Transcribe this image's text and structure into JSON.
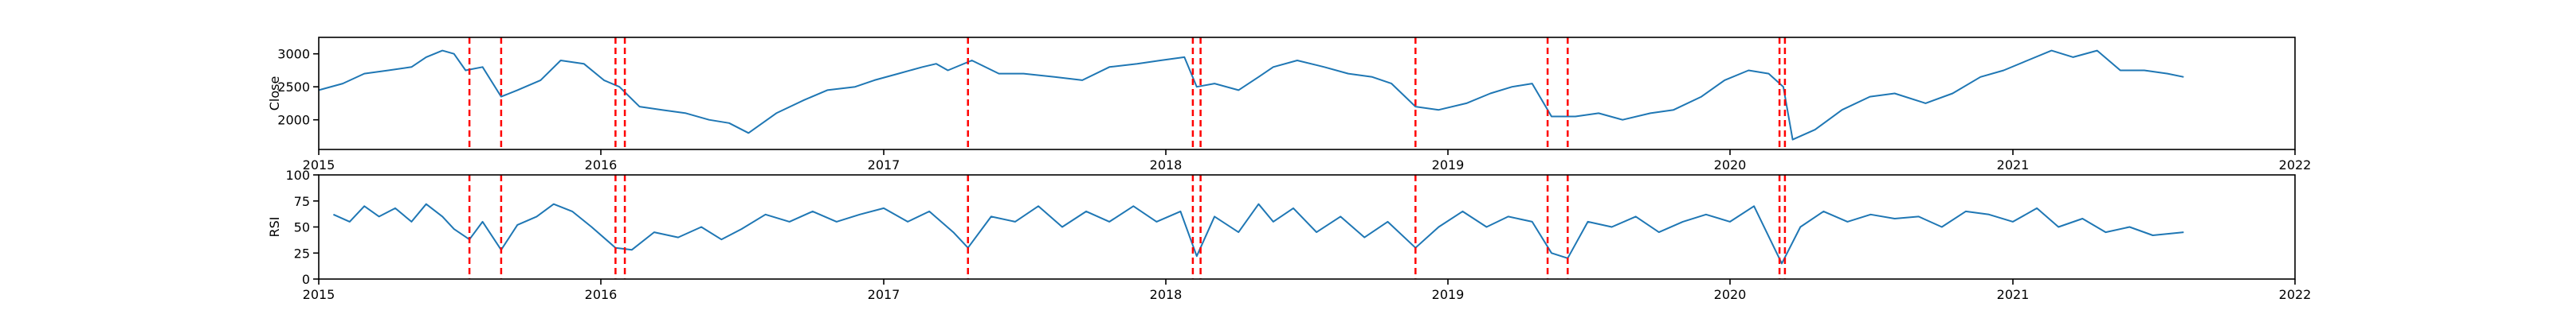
{
  "figure": {
    "colors": {
      "line": "#1f77b4",
      "event": "#ff0000",
      "axes": "#000000"
    }
  },
  "chart_data": [
    {
      "type": "line",
      "ylabel": "Close",
      "xlim": [
        "2015-01-01",
        "2022-01-01"
      ],
      "ylim": [
        1550,
        3250
      ],
      "yticks": [
        2000,
        2500,
        3000
      ],
      "xticks": [
        "2015",
        "2016",
        "2017",
        "2018",
        "2019",
        "2020",
        "2021",
        "2022"
      ],
      "grid": false,
      "series": [
        {
          "x": [
            "2015-01-01",
            "2015-02-01",
            "2015-03-01",
            "2015-04-01",
            "2015-05-01",
            "2015-05-20",
            "2015-06-10",
            "2015-06-25",
            "2015-07-10",
            "2015-08-01",
            "2015-08-25",
            "2015-09-15",
            "2015-10-15",
            "2015-11-10",
            "2015-12-10",
            "2016-01-05",
            "2016-01-25",
            "2016-02-20",
            "2016-03-20",
            "2016-04-20",
            "2016-05-20",
            "2016-06-15",
            "2016-07-10",
            "2016-08-15",
            "2016-09-20",
            "2016-10-20",
            "2016-11-25",
            "2016-12-20",
            "2017-01-20",
            "2017-02-20",
            "2017-03-10",
            "2017-03-25",
            "2017-04-25",
            "2017-05-30",
            "2017-07-01",
            "2017-08-10",
            "2017-09-15",
            "2017-10-20",
            "2017-11-25",
            "2017-12-25",
            "2018-01-25",
            "2018-02-10",
            "2018-03-05",
            "2018-04-05",
            "2018-05-01",
            "2018-05-20",
            "2018-06-20",
            "2018-07-25",
            "2018-08-25",
            "2018-09-25",
            "2018-10-20",
            "2018-11-20",
            "2018-12-20",
            "2019-01-25",
            "2019-02-25",
            "2019-03-25",
            "2019-04-20",
            "2019-05-15",
            "2019-06-15",
            "2019-07-15",
            "2019-08-15",
            "2019-09-20",
            "2019-10-20",
            "2019-11-25",
            "2019-12-25",
            "2020-01-25",
            "2020-02-20",
            "2020-03-10",
            "2020-03-22",
            "2020-04-20",
            "2020-05-25",
            "2020-06-30",
            "2020-08-01",
            "2020-09-10",
            "2020-10-15",
            "2020-11-20",
            "2020-12-20",
            "2021-01-20",
            "2021-02-20",
            "2021-03-20",
            "2021-04-20",
            "2021-05-20",
            "2021-06-20",
            "2021-07-20",
            "2021-08-10"
          ],
          "values": [
            2450,
            2550,
            2700,
            2750,
            2800,
            2950,
            3050,
            3000,
            2750,
            2800,
            2350,
            2450,
            2600,
            2900,
            2850,
            2600,
            2500,
            2200,
            2150,
            2100,
            2000,
            1950,
            1800,
            2100,
            2300,
            2450,
            2500,
            2600,
            2700,
            2800,
            2850,
            2750,
            2900,
            2700,
            2700,
            2650,
            2600,
            2800,
            2850,
            2900,
            2950,
            2500,
            2550,
            2450,
            2650,
            2800,
            2900,
            2800,
            2700,
            2650,
            2550,
            2200,
            2150,
            2250,
            2400,
            2500,
            2550,
            2050,
            2050,
            2100,
            2000,
            2100,
            2150,
            2350,
            2600,
            2750,
            2700,
            2500,
            1700,
            1850,
            2150,
            2350,
            2400,
            2250,
            2400,
            2650,
            2750,
            2900,
            3050,
            2950,
            3050,
            2750,
            2750,
            2700,
            2650
          ]
        }
      ],
      "events": [
        "2015-07-15",
        "2015-08-25",
        "2016-01-20",
        "2016-02-01",
        "2017-04-20",
        "2018-02-05",
        "2018-02-15",
        "2018-11-20",
        "2019-05-10",
        "2019-06-05",
        "2020-03-05",
        "2020-03-12"
      ]
    },
    {
      "type": "line",
      "ylabel": "RSI",
      "xlim": [
        "2015-01-01",
        "2022-01-01"
      ],
      "ylim": [
        0,
        100
      ],
      "yticks": [
        0,
        25,
        50,
        75,
        100
      ],
      "xticks": [
        "2015",
        "2016",
        "2017",
        "2018",
        "2019",
        "2020",
        "2021",
        "2022"
      ],
      "grid": false,
      "series": [
        {
          "x": [
            "2015-01-20",
            "2015-02-10",
            "2015-03-01",
            "2015-03-20",
            "2015-04-10",
            "2015-05-01",
            "2015-05-20",
            "2015-06-10",
            "2015-06-25",
            "2015-07-15",
            "2015-08-01",
            "2015-08-25",
            "2015-09-15",
            "2015-10-10",
            "2015-11-01",
            "2015-11-25",
            "2015-12-20",
            "2016-01-20",
            "2016-02-10",
            "2016-03-10",
            "2016-04-10",
            "2016-05-10",
            "2016-06-05",
            "2016-07-01",
            "2016-08-01",
            "2016-09-01",
            "2016-10-01",
            "2016-11-01",
            "2016-12-01",
            "2017-01-01",
            "2017-02-01",
            "2017-03-01",
            "2017-04-01",
            "2017-04-20",
            "2017-05-20",
            "2017-06-20",
            "2017-07-20",
            "2017-08-20",
            "2017-09-20",
            "2017-10-20",
            "2017-11-20",
            "2017-12-20",
            "2018-01-20",
            "2018-02-10",
            "2018-03-05",
            "2018-04-05",
            "2018-05-01",
            "2018-05-20",
            "2018-06-15",
            "2018-07-15",
            "2018-08-15",
            "2018-09-15",
            "2018-10-15",
            "2018-11-20",
            "2018-12-20",
            "2019-01-20",
            "2019-02-20",
            "2019-03-20",
            "2019-04-20",
            "2019-05-15",
            "2019-06-05",
            "2019-07-01",
            "2019-08-01",
            "2019-09-01",
            "2019-10-01",
            "2019-11-01",
            "2019-12-01",
            "2020-01-01",
            "2020-02-01",
            "2020-03-08",
            "2020-04-01",
            "2020-05-01",
            "2020-06-01",
            "2020-07-01",
            "2020-08-01",
            "2020-09-01",
            "2020-10-01",
            "2020-11-01",
            "2020-12-01",
            "2021-01-01",
            "2021-02-01",
            "2021-03-01",
            "2021-04-01",
            "2021-05-01",
            "2021-06-01",
            "2021-07-01",
            "2021-08-10"
          ],
          "values": [
            62,
            55,
            70,
            60,
            68,
            55,
            72,
            60,
            48,
            38,
            55,
            28,
            52,
            60,
            72,
            65,
            50,
            30,
            28,
            45,
            40,
            50,
            38,
            48,
            62,
            55,
            65,
            55,
            62,
            68,
            55,
            65,
            45,
            30,
            60,
            55,
            70,
            50,
            65,
            55,
            70,
            55,
            65,
            22,
            60,
            45,
            72,
            55,
            68,
            45,
            60,
            40,
            55,
            30,
            50,
            65,
            50,
            60,
            55,
            25,
            20,
            55,
            50,
            60,
            45,
            55,
            62,
            55,
            70,
            15,
            50,
            65,
            55,
            62,
            58,
            60,
            50,
            65,
            62,
            55,
            68,
            50,
            58,
            45,
            50,
            42,
            45
          ]
        }
      ],
      "events": [
        "2015-07-15",
        "2015-08-25",
        "2016-01-20",
        "2016-02-01",
        "2017-04-20",
        "2018-02-05",
        "2018-02-15",
        "2018-11-20",
        "2019-05-10",
        "2019-06-05",
        "2020-03-05",
        "2020-03-12"
      ]
    }
  ]
}
